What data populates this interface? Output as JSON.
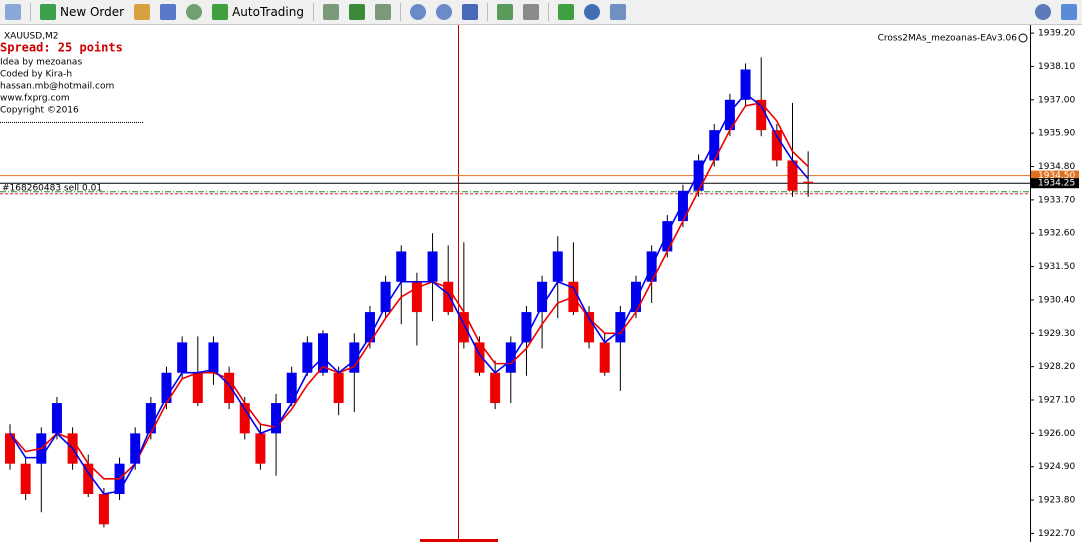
{
  "toolbar": {
    "new_order": "New Order",
    "autotrading": "AutoTrading"
  },
  "chart_data": {
    "type": "candlestick",
    "symbol": "XAUUSD,M2",
    "spread": "Spread: 25 points",
    "info": [
      "Idea by mezoanas",
      "Coded by Kira-h",
      "hassan.mb@hotmail.com",
      "www.fxprg.com",
      "Copyright ©2016"
    ],
    "expert": "Cross2MAs_mezoanas-EAv3.06",
    "up_color": "#0000ee",
    "down_color": "#ee0000",
    "open": [
      1926.0,
      1925.0,
      1925.0,
      1926.0,
      1926.0,
      1925.0,
      1924.0,
      1924.0,
      1925.0,
      1926.0,
      1927.0,
      1928.0,
      1928.0,
      1928.0,
      1928.0,
      1927.0,
      1926.0,
      1926.0,
      1927.0,
      1928.0,
      1928.0,
      1928.0,
      1928.0,
      1929.0,
      1930.0,
      1931.0,
      1931.0,
      1931.0,
      1931.0,
      1930.0,
      1929.0,
      1928.0,
      1928.0,
      1929.0,
      1930.0,
      1931.0,
      1931.0,
      1930.0,
      1929.0,
      1929.0,
      1930.0,
      1931.0,
      1932.0,
      1933.0,
      1934.0,
      1935.0,
      1936.0,
      1937.0,
      1937.0,
      1936.0,
      1935.0,
      1934.3
    ],
    "high": [
      1926.3,
      1925.2,
      1926.2,
      1927.2,
      1926.2,
      1925.3,
      1924.2,
      1925.2,
      1926.2,
      1927.2,
      1928.2,
      1929.2,
      1929.2,
      1929.2,
      1928.2,
      1927.2,
      1926.3,
      1927.3,
      1928.2,
      1929.2,
      1929.4,
      1928.2,
      1929.3,
      1930.2,
      1931.2,
      1932.2,
      1931.3,
      1932.6,
      1932.2,
      1932.3,
      1929.2,
      1928.4,
      1929.2,
      1930.2,
      1931.2,
      1932.5,
      1932.3,
      1930.2,
      1929.3,
      1930.2,
      1931.2,
      1932.2,
      1933.2,
      1934.2,
      1935.2,
      1936.2,
      1937.2,
      1938.2,
      1938.4,
      1936.2,
      1936.9,
      1935.3
    ],
    "low": [
      1924.8,
      1923.8,
      1923.4,
      1925.8,
      1924.8,
      1923.9,
      1922.9,
      1923.8,
      1924.8,
      1925.8,
      1926.8,
      1927.8,
      1926.9,
      1927.6,
      1926.8,
      1925.8,
      1924.8,
      1924.6,
      1926.9,
      1927.9,
      1927.9,
      1926.6,
      1926.7,
      1928.8,
      1929.8,
      1929.6,
      1928.9,
      1929.7,
      1929.9,
      1928.8,
      1927.9,
      1926.8,
      1927.0,
      1927.9,
      1928.8,
      1929.8,
      1929.9,
      1928.8,
      1927.9,
      1927.4,
      1929.8,
      1930.3,
      1931.8,
      1932.8,
      1933.8,
      1934.8,
      1935.8,
      1936.8,
      1935.8,
      1934.8,
      1933.8,
      1933.8
    ],
    "close": [
      1925.0,
      1924.0,
      1926.0,
      1927.0,
      1925.0,
      1924.0,
      1923.0,
      1925.0,
      1926.0,
      1927.0,
      1928.0,
      1929.0,
      1927.0,
      1929.0,
      1927.0,
      1926.0,
      1925.0,
      1927.0,
      1928.0,
      1929.0,
      1929.3,
      1927.0,
      1929.0,
      1930.0,
      1931.0,
      1932.0,
      1930.0,
      1932.0,
      1930.0,
      1929.0,
      1928.0,
      1927.0,
      1929.0,
      1930.0,
      1931.0,
      1932.0,
      1930.0,
      1929.0,
      1928.0,
      1930.0,
      1931.0,
      1932.0,
      1933.0,
      1934.0,
      1935.0,
      1936.0,
      1937.0,
      1938.0,
      1936.0,
      1935.0,
      1934.0,
      1934.25
    ],
    "series": [
      {
        "color": "#ee0000",
        "values": [
          1926.0,
          1925.4,
          1925.5,
          1926.0,
          1925.8,
          1925.0,
          1924.5,
          1924.5,
          1925.0,
          1926.0,
          1927.0,
          1927.8,
          1928.0,
          1928.0,
          1927.8,
          1927.0,
          1926.3,
          1926.2,
          1926.8,
          1927.6,
          1928.2,
          1928.0,
          1928.2,
          1929.0,
          1929.8,
          1930.5,
          1930.8,
          1931.0,
          1930.8,
          1930.0,
          1929.0,
          1928.3,
          1928.3,
          1928.8,
          1929.6,
          1930.3,
          1930.5,
          1929.8,
          1929.3,
          1929.3,
          1930.0,
          1931.0,
          1932.0,
          1933.0,
          1934.0,
          1935.0,
          1936.0,
          1936.8,
          1936.9,
          1936.3,
          1935.3,
          1934.8
        ]
      },
      {
        "color": "#0000ee",
        "values": [
          1926.0,
          1925.2,
          1925.2,
          1926.0,
          1925.5,
          1924.7,
          1924.0,
          1924.1,
          1925.0,
          1926.2,
          1927.2,
          1928.0,
          1928.0,
          1928.1,
          1927.6,
          1926.8,
          1926.0,
          1926.2,
          1927.0,
          1928.0,
          1928.5,
          1928.0,
          1928.4,
          1929.2,
          1930.2,
          1931.0,
          1931.0,
          1931.0,
          1930.6,
          1929.6,
          1928.6,
          1928.0,
          1928.4,
          1929.2,
          1930.2,
          1931.0,
          1930.8,
          1929.8,
          1929.0,
          1929.4,
          1930.4,
          1931.5,
          1932.6,
          1933.6,
          1934.6,
          1935.6,
          1936.6,
          1937.2,
          1936.8,
          1935.8,
          1935.0,
          1934.4
        ]
      }
    ],
    "ylim": [
      1922.5,
      1939.5
    ],
    "yticks": [
      {
        "value": 1939.2,
        "label": "1939.20"
      },
      {
        "value": 1938.1,
        "label": "1938.10"
      },
      {
        "value": 1937.0,
        "label": "1937.00"
      },
      {
        "value": 1935.9,
        "label": "1935.90"
      },
      {
        "value": 1934.8,
        "label": "1934.80"
      },
      {
        "value": 1933.7,
        "label": "1933.70"
      },
      {
        "value": 1932.6,
        "label": "1932.60"
      },
      {
        "value": 1931.5,
        "label": "1931.50"
      },
      {
        "value": 1930.4,
        "label": "1930.40"
      },
      {
        "value": 1929.3,
        "label": "1929.30"
      },
      {
        "value": 1928.2,
        "label": "1928.20"
      },
      {
        "value": 1927.1,
        "label": "1927.10"
      },
      {
        "value": 1926.0,
        "label": "1926.00"
      },
      {
        "value": 1924.9,
        "label": "1924.90"
      },
      {
        "value": 1923.8,
        "label": "1923.80"
      },
      {
        "value": 1922.7,
        "label": "1922.70"
      }
    ],
    "price_lines": [
      {
        "value": 1934.5,
        "label": "1934.50",
        "color": "#e07020"
      },
      {
        "value": 1934.25,
        "label": "1934.25",
        "color": "#000000"
      }
    ],
    "order_line": {
      "value": 1933.9,
      "label": "#168260483 sell 0.01"
    }
  }
}
